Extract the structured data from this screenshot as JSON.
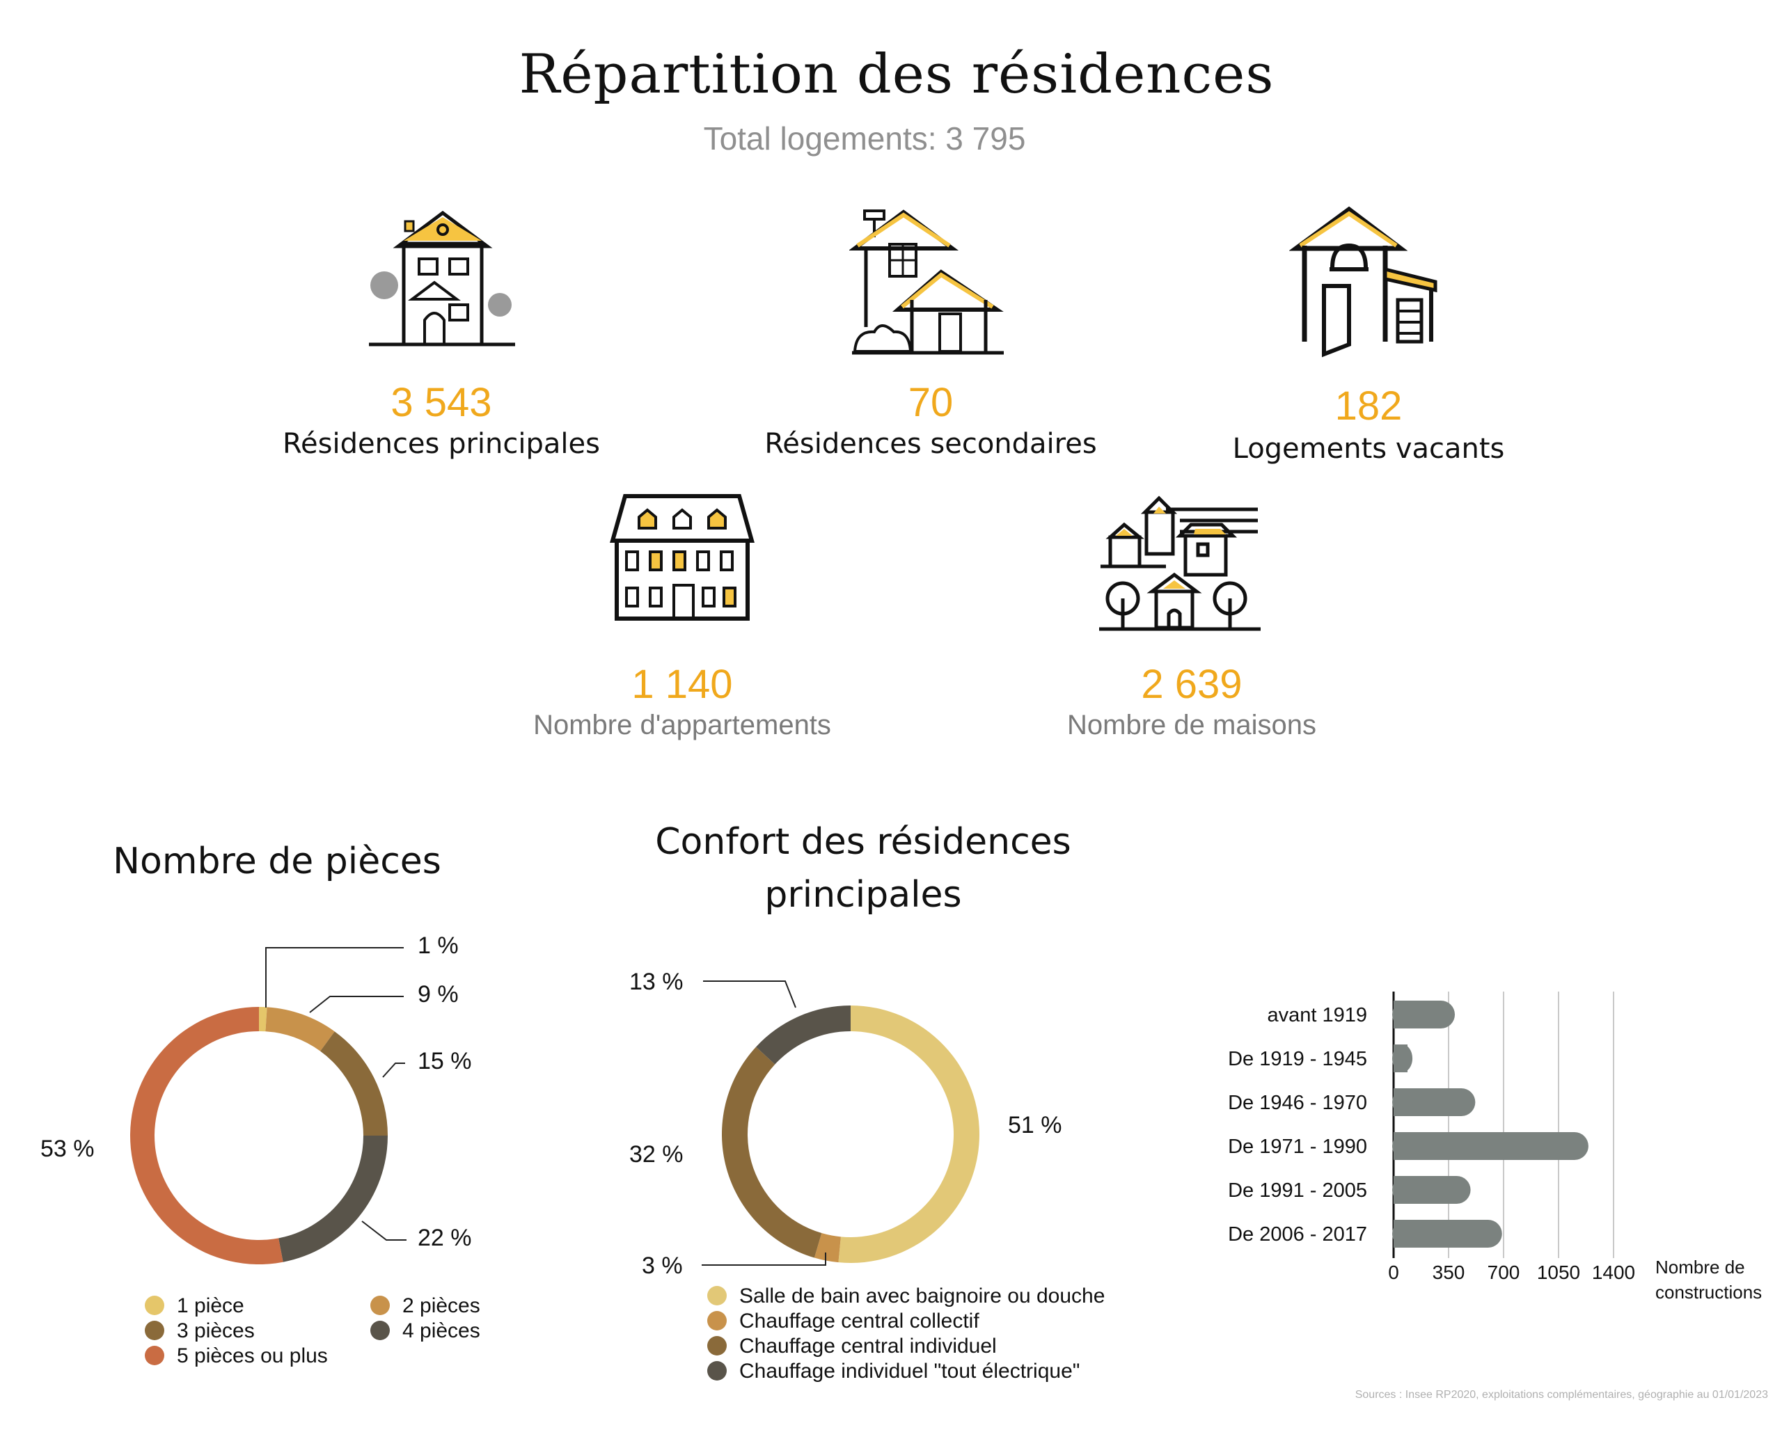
{
  "header": {
    "title": "Répartition des résidences",
    "subtitle": "Total logements: 3 795"
  },
  "stats": [
    {
      "icon": "townhouse-icon",
      "value": "3 543",
      "label": "Résidences principales"
    },
    {
      "icon": "two-houses-icon",
      "value": "70",
      "label": "Résidences secondaires"
    },
    {
      "icon": "open-door-house-icon",
      "value": "182",
      "label": "Logements vacants"
    },
    {
      "icon": "apartment-building-icon",
      "value": "1 140",
      "label": "Nombre d'appartements"
    },
    {
      "icon": "village-houses-icon",
      "value": "2 639",
      "label": "Nombre de maisons"
    }
  ],
  "colors": {
    "accent": "#f0a81c",
    "icon_yellow": "#f6c441",
    "gray": "#7b827f"
  },
  "chart_data": [
    {
      "type": "pie",
      "title": "Nombre de pièces",
      "categories": [
        "1 pièce",
        "2 pièces",
        "3 pièces",
        "4 pièces",
        "5 pièces ou plus"
      ],
      "values": [
        1,
        9,
        15,
        22,
        53
      ],
      "labels": [
        "1 %",
        "9 %",
        "15 %",
        "22 %",
        "53 %"
      ],
      "colors": [
        "#e5c66a",
        "#c8924b",
        "#8a6a3a",
        "#59544a",
        "#c96c43"
      ],
      "legend": "bottom"
    },
    {
      "type": "pie",
      "title": "Confort des résidences principales",
      "categories": [
        "Salle de bain avec baignoire ou douche",
        "Chauffage central collectif",
        "Chauffage central individuel",
        "Chauffage individuel \"tout électrique\""
      ],
      "values": [
        51,
        3,
        32,
        13
      ],
      "labels": [
        "51 %",
        "3 %",
        "32 %",
        "13 %"
      ],
      "colors": [
        "#e2c877",
        "#c8924b",
        "#8a6a3a",
        "#59544a"
      ],
      "legend": "bottom"
    },
    {
      "type": "bar",
      "orientation": "horizontal",
      "categories": [
        "avant 1919",
        "De 1919 - 1945",
        "De 1946 - 1970",
        "De 1971 - 1990",
        "De 1991 - 2005",
        "De 2006 - 2017"
      ],
      "values": [
        390,
        120,
        520,
        1240,
        490,
        690
      ],
      "xlabel": "Nombre de constructions",
      "xticks": [
        0,
        350,
        700,
        1050,
        1400
      ],
      "xlim": [
        0,
        1400
      ],
      "grid": true,
      "color": "#7b827f"
    }
  ],
  "footer": {
    "sources": "Sources : Insee RP2020, exploitations complémentaires, géographie au 01/01/2023"
  }
}
